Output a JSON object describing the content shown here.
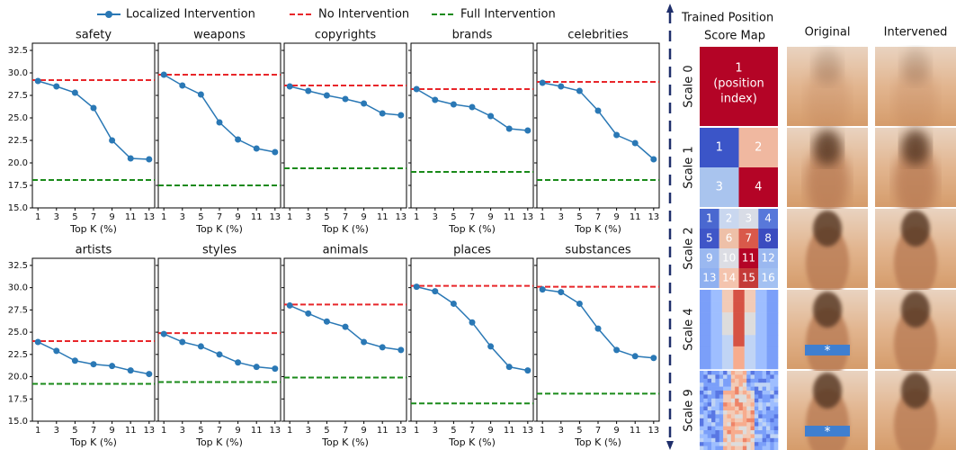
{
  "chart_data": [
    {
      "type": "line",
      "title": "safety",
      "xlabel": "Top K (%)",
      "x": [
        1,
        3,
        5,
        7,
        9,
        11,
        13
      ],
      "xlim": [
        0.4,
        13.6
      ],
      "xticks": [
        1,
        3,
        5,
        7,
        9,
        11,
        13
      ],
      "ylim": [
        15,
        33.3
      ],
      "yticks": [
        {
          "value": 15,
          "label": "15.0"
        },
        17.5,
        {
          "value": 20,
          "label": "20.0"
        },
        22.5,
        {
          "value": 25,
          "label": "25.0"
        },
        27.5,
        {
          "value": 30,
          "label": "30.0"
        },
        32.5
      ],
      "ytick_labels": true,
      "series": [
        {
          "name": "Localized Intervention",
          "color": "#2a78b5",
          "values": [
            29.1,
            28.5,
            27.8,
            26.1,
            22.5,
            20.5,
            20.4
          ]
        }
      ],
      "reference_lines": [
        {
          "name": "No Intervention",
          "color": "#e8262a",
          "value": 29.2
        },
        {
          "name": "Full Intervention",
          "color": "#1a8a1a",
          "value": 18.1
        }
      ]
    },
    {
      "type": "line",
      "title": "weapons",
      "xlabel": "Top K (%)",
      "x": [
        1,
        3,
        5,
        7,
        9,
        11,
        13
      ],
      "xlim": [
        0.4,
        13.6
      ],
      "xticks": [
        1,
        3,
        5,
        7,
        9,
        11,
        13
      ],
      "ylim": [
        15,
        33.3
      ],
      "yticks": [
        15,
        17.5,
        20,
        22.5,
        25,
        27.5,
        30,
        32.5
      ],
      "ytick_labels": false,
      "series": [
        {
          "name": "Localized Intervention",
          "color": "#2a78b5",
          "values": [
            29.8,
            28.6,
            27.6,
            24.5,
            22.6,
            21.6,
            21.2
          ]
        }
      ],
      "reference_lines": [
        {
          "name": "No Intervention",
          "color": "#e8262a",
          "value": 29.8
        },
        {
          "name": "Full Intervention",
          "color": "#1a8a1a",
          "value": 17.5
        }
      ]
    },
    {
      "type": "line",
      "title": "copyrights",
      "xlabel": "Top K (%)",
      "x": [
        1,
        3,
        5,
        7,
        9,
        11,
        13
      ],
      "xlim": [
        0.4,
        13.6
      ],
      "xticks": [
        1,
        3,
        5,
        7,
        9,
        11,
        13
      ],
      "ylim": [
        15,
        33.3
      ],
      "yticks": [
        15,
        17.5,
        20,
        22.5,
        25,
        27.5,
        30,
        32.5
      ],
      "ytick_labels": false,
      "series": [
        {
          "name": "Localized Intervention",
          "color": "#2a78b5",
          "values": [
            28.5,
            28.0,
            27.5,
            27.1,
            26.6,
            25.5,
            25.3
          ]
        }
      ],
      "reference_lines": [
        {
          "name": "No Intervention",
          "color": "#e8262a",
          "value": 28.6
        },
        {
          "name": "Full Intervention",
          "color": "#1a8a1a",
          "value": 19.4
        }
      ]
    },
    {
      "type": "line",
      "title": "brands",
      "xlabel": "Top K (%)",
      "x": [
        1,
        3,
        5,
        7,
        9,
        11,
        13
      ],
      "xlim": [
        0.4,
        13.6
      ],
      "xticks": [
        1,
        3,
        5,
        7,
        9,
        11,
        13
      ],
      "ylim": [
        15,
        33.3
      ],
      "yticks": [
        15,
        17.5,
        20,
        22.5,
        25,
        27.5,
        30,
        32.5
      ],
      "ytick_labels": false,
      "series": [
        {
          "name": "Localized Intervention",
          "color": "#2a78b5",
          "values": [
            28.2,
            27.0,
            26.5,
            26.2,
            25.2,
            23.8,
            23.6
          ]
        }
      ],
      "reference_lines": [
        {
          "name": "No Intervention",
          "color": "#e8262a",
          "value": 28.2
        },
        {
          "name": "Full Intervention",
          "color": "#1a8a1a",
          "value": 19.0
        }
      ]
    },
    {
      "type": "line",
      "title": "celebrities",
      "xlabel": "Top K (%)",
      "x": [
        1,
        3,
        5,
        7,
        9,
        11,
        13
      ],
      "xlim": [
        0.4,
        13.6
      ],
      "xticks": [
        1,
        3,
        5,
        7,
        9,
        11,
        13
      ],
      "ylim": [
        15,
        33.3
      ],
      "yticks": [
        15,
        17.5,
        20,
        22.5,
        25,
        27.5,
        30,
        32.5
      ],
      "ytick_labels": false,
      "series": [
        {
          "name": "Localized Intervention",
          "color": "#2a78b5",
          "values": [
            28.9,
            28.5,
            28.0,
            25.8,
            23.1,
            22.2,
            20.4
          ]
        }
      ],
      "reference_lines": [
        {
          "name": "No Intervention",
          "color": "#e8262a",
          "value": 29.0
        },
        {
          "name": "Full Intervention",
          "color": "#1a8a1a",
          "value": 18.1
        }
      ]
    },
    {
      "type": "line",
      "title": "artists",
      "xlabel": "Top K (%)",
      "x": [
        1,
        3,
        5,
        7,
        9,
        11,
        13
      ],
      "xlim": [
        0.4,
        13.6
      ],
      "xticks": [
        1,
        3,
        5,
        7,
        9,
        11,
        13
      ],
      "ylim": [
        15,
        33.3
      ],
      "yticks": [
        {
          "value": 15,
          "label": "15.0"
        },
        17.5,
        {
          "value": 20,
          "label": "20.0"
        },
        22.5,
        {
          "value": 25,
          "label": "25.0"
        },
        27.5,
        {
          "value": 30,
          "label": "30.0"
        },
        32.5
      ],
      "ytick_labels": true,
      "series": [
        {
          "name": "Localized Intervention",
          "color": "#2a78b5",
          "values": [
            23.9,
            22.9,
            21.8,
            21.4,
            21.2,
            20.7,
            20.3
          ]
        }
      ],
      "reference_lines": [
        {
          "name": "No Intervention",
          "color": "#e8262a",
          "value": 24.0
        },
        {
          "name": "Full Intervention",
          "color": "#1a8a1a",
          "value": 19.2
        }
      ]
    },
    {
      "type": "line",
      "title": "styles",
      "xlabel": "Top K (%)",
      "x": [
        1,
        3,
        5,
        7,
        9,
        11,
        13
      ],
      "xlim": [
        0.4,
        13.6
      ],
      "xticks": [
        1,
        3,
        5,
        7,
        9,
        11,
        13
      ],
      "ylim": [
        15,
        33.3
      ],
      "yticks": [
        15,
        17.5,
        20,
        22.5,
        25,
        27.5,
        30,
        32.5
      ],
      "ytick_labels": false,
      "series": [
        {
          "name": "Localized Intervention",
          "color": "#2a78b5",
          "values": [
            24.8,
            23.9,
            23.4,
            22.5,
            21.6,
            21.1,
            20.9
          ]
        }
      ],
      "reference_lines": [
        {
          "name": "No Intervention",
          "color": "#e8262a",
          "value": 24.9
        },
        {
          "name": "Full Intervention",
          "color": "#1a8a1a",
          "value": 19.4
        }
      ]
    },
    {
      "type": "line",
      "title": "animals",
      "xlabel": "Top K (%)",
      "x": [
        1,
        3,
        5,
        7,
        9,
        11,
        13
      ],
      "xlim": [
        0.4,
        13.6
      ],
      "xticks": [
        1,
        3,
        5,
        7,
        9,
        11,
        13
      ],
      "ylim": [
        15,
        33.3
      ],
      "yticks": [
        15,
        17.5,
        20,
        22.5,
        25,
        27.5,
        30,
        32.5
      ],
      "ytick_labels": false,
      "series": [
        {
          "name": "Localized Intervention",
          "color": "#2a78b5",
          "values": [
            28.0,
            27.1,
            26.2,
            25.6,
            23.9,
            23.3,
            23.0
          ]
        }
      ],
      "reference_lines": [
        {
          "name": "No Intervention",
          "color": "#e8262a",
          "value": 28.1
        },
        {
          "name": "Full Intervention",
          "color": "#1a8a1a",
          "value": 19.9
        }
      ]
    },
    {
      "type": "line",
      "title": "places",
      "xlabel": "Top K (%)",
      "x": [
        1,
        3,
        5,
        7,
        9,
        11,
        13
      ],
      "xlim": [
        0.4,
        13.6
      ],
      "xticks": [
        1,
        3,
        5,
        7,
        9,
        11,
        13
      ],
      "ylim": [
        15,
        33.3
      ],
      "yticks": [
        15,
        17.5,
        20,
        22.5,
        25,
        27.5,
        30,
        32.5
      ],
      "ytick_labels": false,
      "series": [
        {
          "name": "Localized Intervention",
          "color": "#2a78b5",
          "values": [
            30.1,
            29.6,
            28.2,
            26.1,
            23.4,
            21.1,
            20.7
          ]
        }
      ],
      "reference_lines": [
        {
          "name": "No Intervention",
          "color": "#e8262a",
          "value": 30.2
        },
        {
          "name": "Full Intervention",
          "color": "#1a8a1a",
          "value": 17.0
        }
      ]
    },
    {
      "type": "line",
      "title": "substances",
      "xlabel": "Top K (%)",
      "x": [
        1,
        3,
        5,
        7,
        9,
        11,
        13
      ],
      "xlim": [
        0.4,
        13.6
      ],
      "xticks": [
        1,
        3,
        5,
        7,
        9,
        11,
        13
      ],
      "ylim": [
        15,
        33.3
      ],
      "yticks": [
        15,
        17.5,
        20,
        22.5,
        25,
        27.5,
        30,
        32.5
      ],
      "ytick_labels": false,
      "series": [
        {
          "name": "Localized Intervention",
          "color": "#2a78b5",
          "values": [
            29.8,
            29.5,
            28.2,
            25.4,
            23.0,
            22.3,
            22.1
          ]
        }
      ],
      "reference_lines": [
        {
          "name": "No Intervention",
          "color": "#e8262a",
          "value": 30.1
        },
        {
          "name": "Full Intervention",
          "color": "#1a8a1a",
          "value": 18.1
        }
      ]
    }
  ],
  "panel": {
    "title_lines": [
      "Trained Position",
      "Score Map"
    ],
    "columns": [
      "Original",
      "Intervened"
    ],
    "rows": [
      {
        "label": "Scale 0",
        "cells": [],
        "note_lines": [
          "1",
          "(position",
          "index)"
        ]
      },
      {
        "label": "Scale 1",
        "cells": [
          "1",
          "2",
          "3",
          "4"
        ]
      },
      {
        "label": "Scale 2",
        "cells": [
          "1",
          "2",
          "3",
          "4",
          "5",
          "6",
          "7",
          "8",
          "9",
          "10",
          "11",
          "12",
          "13",
          "14",
          "15",
          "16"
        ]
      },
      {
        "label": "Scale 4",
        "cells": [],
        "marker": "*"
      },
      {
        "label": "Scale 9",
        "cells": [],
        "marker": "*"
      }
    ]
  }
}
